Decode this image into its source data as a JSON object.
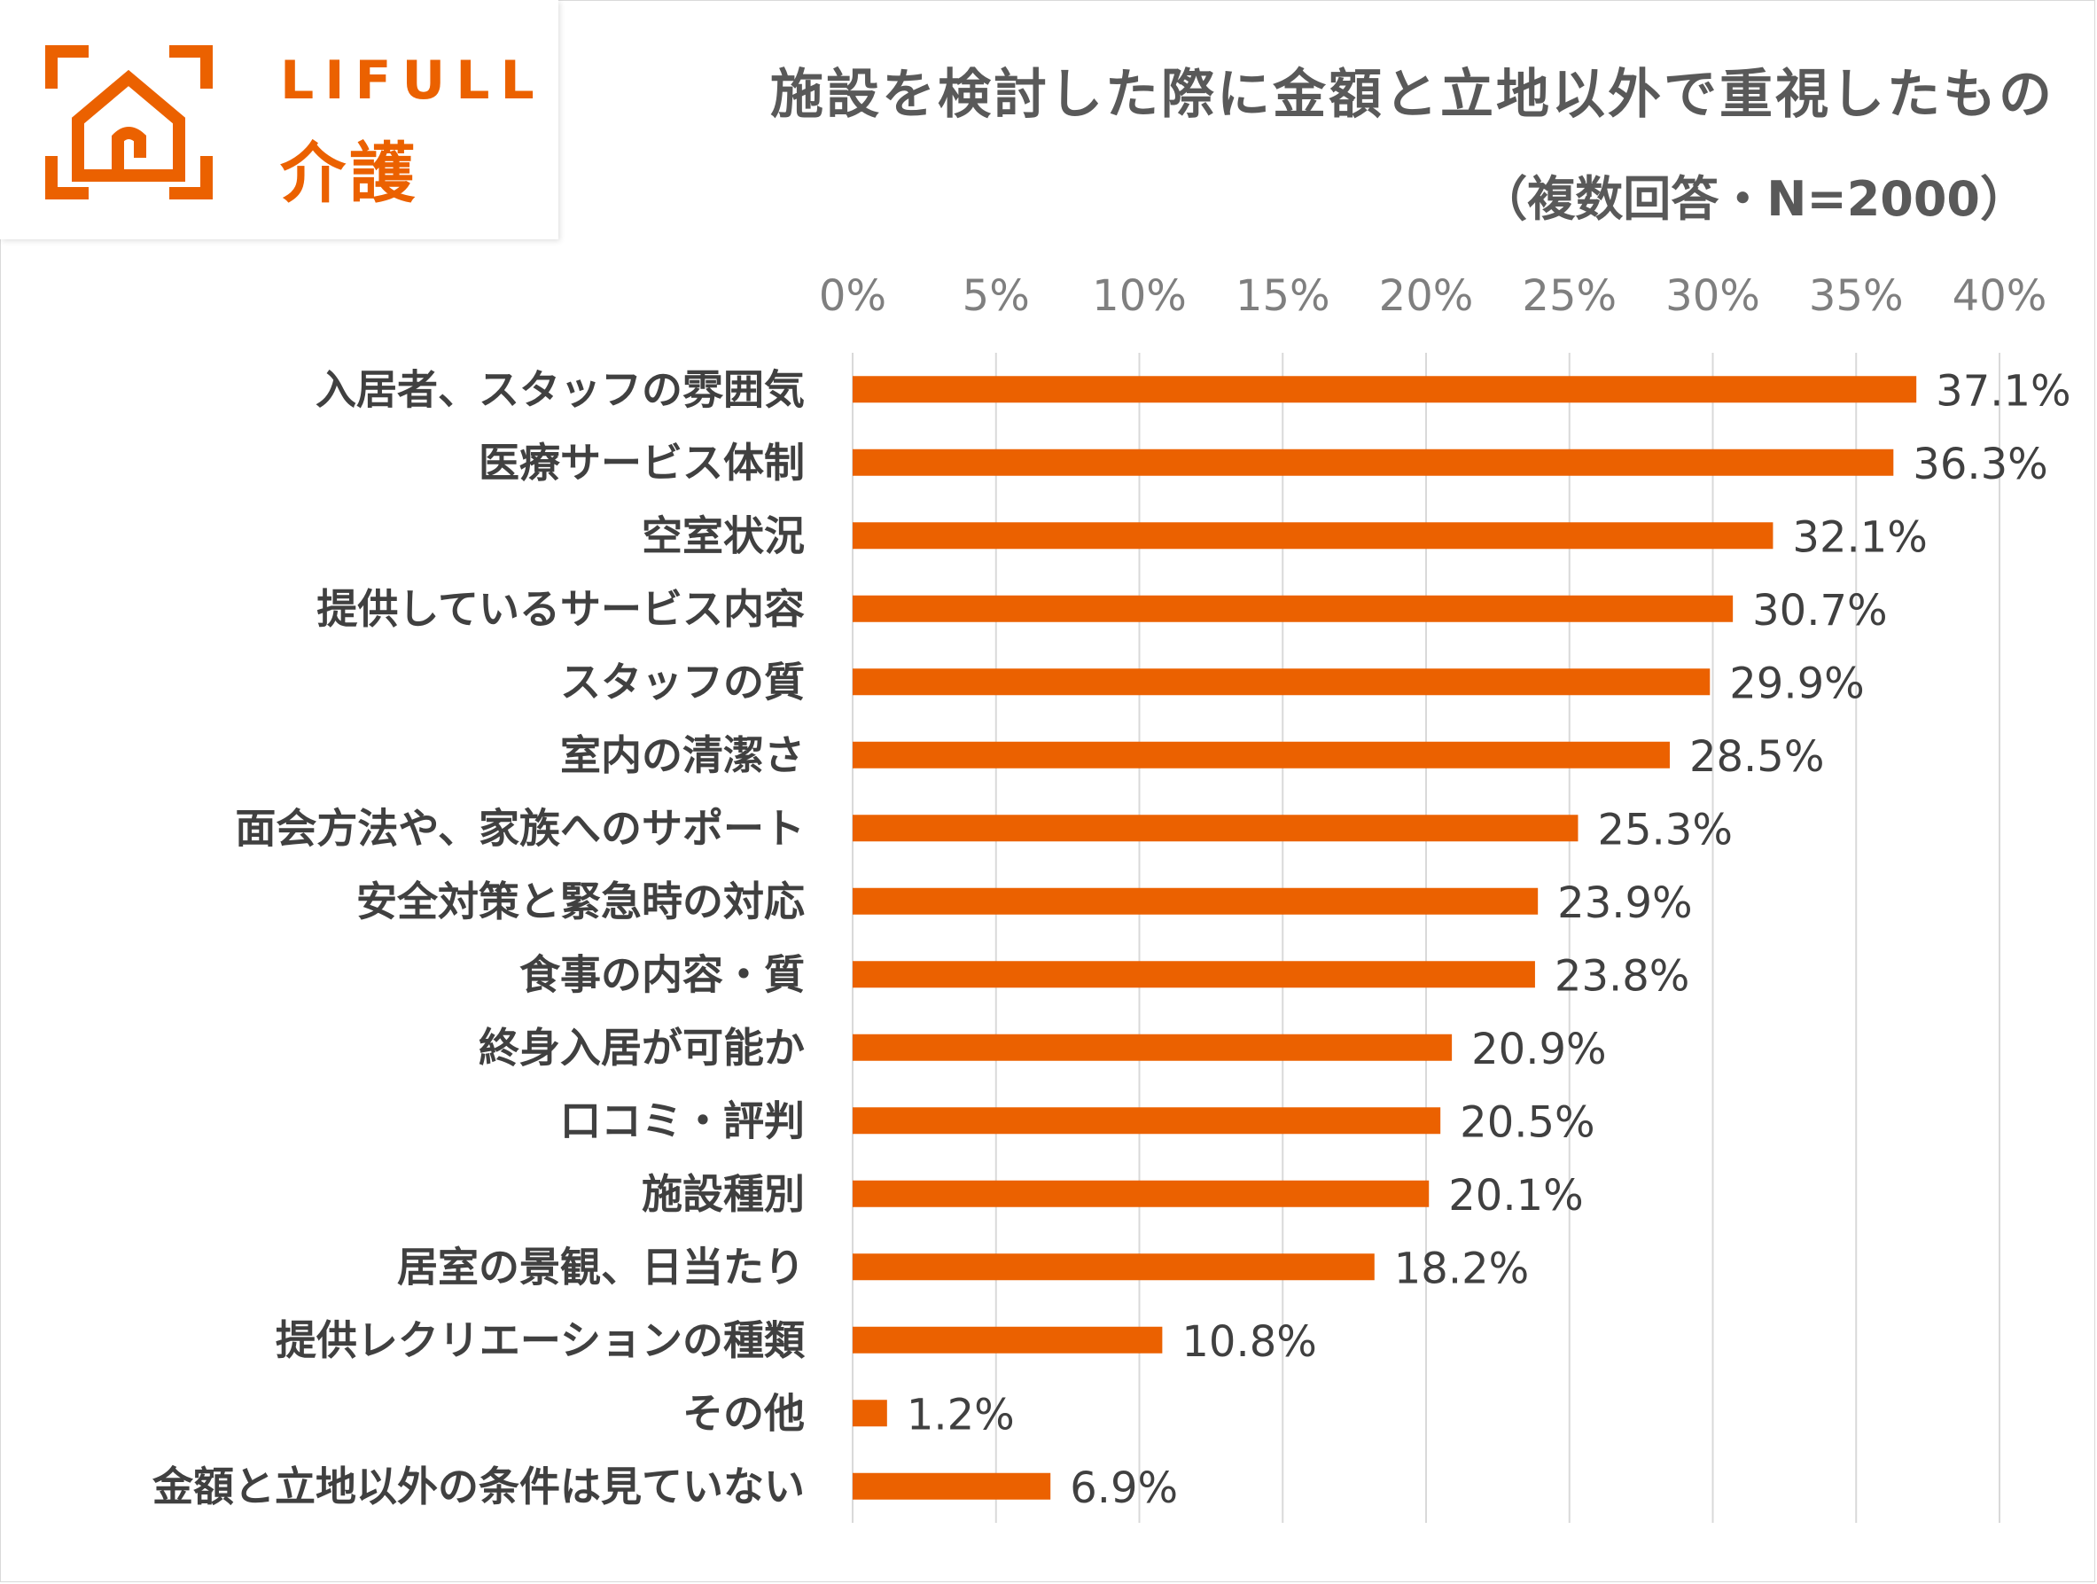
{
  "logo": {
    "brand_top": "LIFULL",
    "brand_bottom": "介護"
  },
  "colors": {
    "accent": "#eb6100",
    "grid": "#d9d9d9",
    "text": "#595959"
  },
  "chart_data": {
    "type": "bar",
    "orientation": "horizontal",
    "title": "施設を検討した際に金額と立地以外で重視したもの",
    "subtitle": "（複数回答・N=2000）",
    "xlabel": "",
    "ylabel": "",
    "xlim": [
      0,
      40
    ],
    "x_ticks": [
      0,
      5,
      10,
      15,
      20,
      25,
      30,
      35,
      40
    ],
    "x_tick_labels": [
      "0%",
      "5%",
      "10%",
      "15%",
      "20%",
      "25%",
      "30%",
      "35%",
      "40%"
    ],
    "tick_axis_position": "top",
    "grid": true,
    "legend": "none",
    "categories": [
      "入居者、スタッフの雰囲気",
      "医療サービス体制",
      "空室状況",
      "提供しているサービス内容",
      "スタッフの質",
      "室内の清潔さ",
      "面会方法や、家族へのサポート",
      "安全対策と緊急時の対応",
      "食事の内容・質",
      "終身入居が可能か",
      "口コミ・評判",
      "施設種別",
      "居室の景観、日当たり",
      "提供レクリエーションの種類",
      "その他",
      "金額と立地以外の条件は見ていない"
    ],
    "values": [
      37.1,
      36.3,
      32.1,
      30.7,
      29.9,
      28.5,
      25.3,
      23.9,
      23.8,
      20.9,
      20.5,
      20.1,
      18.2,
      10.8,
      1.2,
      6.9
    ],
    "value_labels": [
      "37.1%",
      "36.3%",
      "32.1%",
      "30.7%",
      "29.9%",
      "28.5%",
      "25.3%",
      "23.9%",
      "23.8%",
      "20.9%",
      "20.5%",
      "20.1%",
      "18.2%",
      "10.8%",
      "1.2%",
      "6.9%"
    ]
  }
}
